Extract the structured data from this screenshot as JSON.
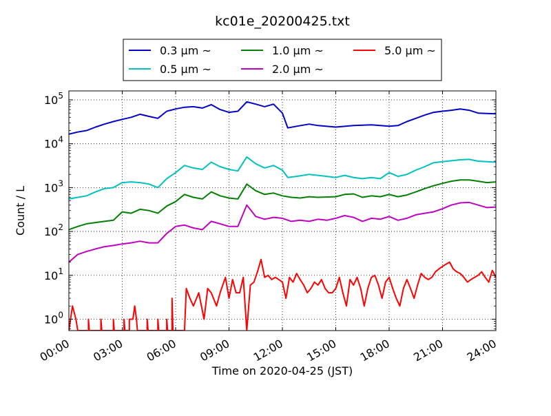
{
  "chart_data": {
    "type": "line",
    "title": "kc01e_20200425.txt",
    "xlabel": "Time on 2020-04-25 (JST)",
    "ylabel": "Count / L",
    "x_unit": "hours",
    "xlim": [
      0,
      24
    ],
    "ylim": [
      0.55,
      160000
    ],
    "yscale": "log",
    "grid": true,
    "legend_placement": "top-center",
    "x_ticks": [
      {
        "value": 0,
        "label": "00:00"
      },
      {
        "value": 3,
        "label": "03:00"
      },
      {
        "value": 6,
        "label": "06:00"
      },
      {
        "value": 9,
        "label": "09:00"
      },
      {
        "value": 12,
        "label": "12:00"
      },
      {
        "value": 15,
        "label": "15:00"
      },
      {
        "value": 18,
        "label": "18:00"
      },
      {
        "value": 21,
        "label": "21:00"
      },
      {
        "value": 24,
        "label": "24:00"
      }
    ],
    "y_ticks": [
      {
        "value": 1,
        "base": "10",
        "exp": "0"
      },
      {
        "value": 10,
        "base": "10",
        "exp": "1"
      },
      {
        "value": 100,
        "base": "10",
        "exp": "2"
      },
      {
        "value": 1000,
        "base": "10",
        "exp": "3"
      },
      {
        "value": 10000,
        "base": "10",
        "exp": "4"
      },
      {
        "value": 100000,
        "base": "10",
        "exp": "5"
      }
    ],
    "series": [
      {
        "name": "0.3 μm  ~",
        "color": "#0000cc",
        "points": [
          [
            0,
            16500
          ],
          [
            0.5,
            18500
          ],
          [
            1,
            20000
          ],
          [
            1.5,
            24000
          ],
          [
            2,
            28000
          ],
          [
            2.5,
            32000
          ],
          [
            3,
            36000
          ],
          [
            3.5,
            40000
          ],
          [
            4,
            47000
          ],
          [
            4.5,
            42000
          ],
          [
            5,
            38000
          ],
          [
            5.5,
            55000
          ],
          [
            6,
            62000
          ],
          [
            6.5,
            68000
          ],
          [
            7,
            70000
          ],
          [
            7.5,
            65000
          ],
          [
            8,
            78000
          ],
          [
            8.5,
            60000
          ],
          [
            9,
            52000
          ],
          [
            9.5,
            55000
          ],
          [
            10,
            90000
          ],
          [
            10.5,
            80000
          ],
          [
            11,
            70000
          ],
          [
            11.5,
            80000
          ],
          [
            12,
            50000
          ],
          [
            12.3,
            23000
          ],
          [
            12.8,
            25000
          ],
          [
            13.5,
            28000
          ],
          [
            14,
            26000
          ],
          [
            15,
            24000
          ],
          [
            16,
            26000
          ],
          [
            17,
            27000
          ],
          [
            18,
            25000
          ],
          [
            18.5,
            26000
          ],
          [
            19,
            32000
          ],
          [
            19.5,
            38000
          ],
          [
            20,
            45000
          ],
          [
            20.5,
            52000
          ],
          [
            21,
            55000
          ],
          [
            21.5,
            58000
          ],
          [
            22,
            62000
          ],
          [
            22.5,
            58000
          ],
          [
            23,
            50000
          ],
          [
            24,
            48000
          ]
        ]
      },
      {
        "name": "0.5 μm  ~",
        "color": "#00bfbf",
        "points": [
          [
            0,
            550
          ],
          [
            0.5,
            600
          ],
          [
            1,
            650
          ],
          [
            1.5,
            800
          ],
          [
            2,
            950
          ],
          [
            2.5,
            1000
          ],
          [
            3,
            1300
          ],
          [
            3.5,
            1350
          ],
          [
            4,
            1300
          ],
          [
            4.5,
            1200
          ],
          [
            5,
            1000
          ],
          [
            5.5,
            1600
          ],
          [
            6,
            2200
          ],
          [
            6.5,
            3200
          ],
          [
            7,
            2800
          ],
          [
            7.5,
            2600
          ],
          [
            8,
            3800
          ],
          [
            8.5,
            3000
          ],
          [
            9,
            2600
          ],
          [
            9.5,
            2400
          ],
          [
            10,
            5000
          ],
          [
            10.5,
            3500
          ],
          [
            11,
            2800
          ],
          [
            11.5,
            3200
          ],
          [
            12,
            2500
          ],
          [
            12.3,
            1700
          ],
          [
            12.8,
            1800
          ],
          [
            13.5,
            2000
          ],
          [
            14,
            1900
          ],
          [
            14.5,
            1800
          ],
          [
            15,
            1700
          ],
          [
            15.5,
            1900
          ],
          [
            16,
            1700
          ],
          [
            16.5,
            1600
          ],
          [
            17,
            1700
          ],
          [
            17.5,
            1600
          ],
          [
            18,
            2200
          ],
          [
            18.5,
            1800
          ],
          [
            19,
            2000
          ],
          [
            19.5,
            2500
          ],
          [
            20,
            3000
          ],
          [
            20.5,
            3700
          ],
          [
            21,
            3900
          ],
          [
            21.5,
            4100
          ],
          [
            22,
            4300
          ],
          [
            22.5,
            4400
          ],
          [
            23,
            4000
          ],
          [
            24,
            3800
          ]
        ]
      },
      {
        "name": "1.0 μm  ~",
        "color": "#007f00",
        "points": [
          [
            0,
            110
          ],
          [
            0.5,
            130
          ],
          [
            1,
            150
          ],
          [
            1.5,
            160
          ],
          [
            2,
            170
          ],
          [
            2.5,
            180
          ],
          [
            3,
            280
          ],
          [
            3.5,
            260
          ],
          [
            4,
            320
          ],
          [
            4.5,
            300
          ],
          [
            5,
            260
          ],
          [
            5.5,
            380
          ],
          [
            6,
            480
          ],
          [
            6.5,
            700
          ],
          [
            7,
            600
          ],
          [
            7.5,
            550
          ],
          [
            8,
            800
          ],
          [
            8.5,
            650
          ],
          [
            9,
            580
          ],
          [
            9.5,
            550
          ],
          [
            10,
            1200
          ],
          [
            10.5,
            850
          ],
          [
            11,
            700
          ],
          [
            11.5,
            750
          ],
          [
            12,
            650
          ],
          [
            12.5,
            600
          ],
          [
            13,
            580
          ],
          [
            13.5,
            620
          ],
          [
            14,
            600
          ],
          [
            15,
            620
          ],
          [
            15.5,
            700
          ],
          [
            16,
            720
          ],
          [
            16.5,
            600
          ],
          [
            17,
            650
          ],
          [
            17.5,
            620
          ],
          [
            18,
            700
          ],
          [
            18.5,
            620
          ],
          [
            19,
            680
          ],
          [
            19.5,
            800
          ],
          [
            20,
            950
          ],
          [
            20.5,
            1100
          ],
          [
            21,
            1250
          ],
          [
            21.5,
            1400
          ],
          [
            22,
            1500
          ],
          [
            22.5,
            1500
          ],
          [
            23,
            1400
          ],
          [
            23.5,
            1300
          ],
          [
            24,
            1350
          ]
        ]
      },
      {
        "name": "2.0 μm  ~",
        "color": "#bf00bf",
        "points": [
          [
            0,
            20
          ],
          [
            0.5,
            30
          ],
          [
            1,
            35
          ],
          [
            1.5,
            40
          ],
          [
            2,
            45
          ],
          [
            2.5,
            48
          ],
          [
            3,
            52
          ],
          [
            3.5,
            55
          ],
          [
            4,
            60
          ],
          [
            4.5,
            55
          ],
          [
            5,
            55
          ],
          [
            5.5,
            90
          ],
          [
            6,
            130
          ],
          [
            6.5,
            140
          ],
          [
            7,
            120
          ],
          [
            7.5,
            110
          ],
          [
            8,
            170
          ],
          [
            8.5,
            150
          ],
          [
            9,
            130
          ],
          [
            9.5,
            130
          ],
          [
            10,
            400
          ],
          [
            10.5,
            220
          ],
          [
            11,
            190
          ],
          [
            11.5,
            210
          ],
          [
            12,
            200
          ],
          [
            12.5,
            170
          ],
          [
            13,
            180
          ],
          [
            13.5,
            170
          ],
          [
            14,
            190
          ],
          [
            14.5,
            180
          ],
          [
            15,
            200
          ],
          [
            15.5,
            230
          ],
          [
            16,
            210
          ],
          [
            16.5,
            170
          ],
          [
            17,
            200
          ],
          [
            17.5,
            190
          ],
          [
            18,
            220
          ],
          [
            18.5,
            180
          ],
          [
            19,
            200
          ],
          [
            19.5,
            240
          ],
          [
            20,
            260
          ],
          [
            20.5,
            280
          ],
          [
            21,
            330
          ],
          [
            21.5,
            400
          ],
          [
            22,
            450
          ],
          [
            22.5,
            460
          ],
          [
            23,
            400
          ],
          [
            23.5,
            350
          ],
          [
            24,
            360
          ]
        ]
      },
      {
        "name": "5.0 μm  ~",
        "color": "#ff0000",
        "points": [
          [
            0,
            0.55
          ],
          [
            0.2,
            2
          ],
          [
            0.4,
            1
          ],
          [
            0.5,
            0.55
          ],
          [
            1.1,
            0.55
          ],
          [
            1.1,
            1
          ],
          [
            1.15,
            0.55
          ],
          [
            1.8,
            0.55
          ],
          [
            1.8,
            1
          ],
          [
            1.85,
            0.55
          ],
          [
            2.5,
            0.55
          ],
          [
            2.5,
            1
          ],
          [
            2.55,
            0.55
          ],
          [
            3.1,
            0.55
          ],
          [
            3.1,
            1
          ],
          [
            3.15,
            0.55
          ],
          [
            3.4,
            0.55
          ],
          [
            3.4,
            1
          ],
          [
            3.6,
            1
          ],
          [
            3.7,
            2
          ],
          [
            3.8,
            1
          ],
          [
            3.85,
            0.55
          ],
          [
            4.4,
            0.55
          ],
          [
            4.4,
            1
          ],
          [
            4.45,
            0.55
          ],
          [
            5.0,
            0.55
          ],
          [
            5.0,
            1
          ],
          [
            5.05,
            0.55
          ],
          [
            5.5,
            0.55
          ],
          [
            5.5,
            1
          ],
          [
            5.55,
            0.55
          ],
          [
            5.8,
            0.55
          ],
          [
            5.8,
            3
          ],
          [
            5.85,
            0.55
          ],
          [
            6.5,
            0.55
          ],
          [
            6.6,
            5
          ],
          [
            6.8,
            3
          ],
          [
            7,
            2
          ],
          [
            7.3,
            4
          ],
          [
            7.6,
            1
          ],
          [
            7.8,
            5
          ],
          [
            8,
            4
          ],
          [
            8.3,
            2
          ],
          [
            8.5,
            4
          ],
          [
            8.8,
            9
          ],
          [
            9,
            3
          ],
          [
            9.2,
            8
          ],
          [
            9.4,
            4
          ],
          [
            9.6,
            4
          ],
          [
            9.8,
            9
          ],
          [
            10,
            0.55
          ],
          [
            10.2,
            6
          ],
          [
            10.4,
            7
          ],
          [
            10.6,
            12
          ],
          [
            10.8,
            23
          ],
          [
            11,
            9
          ],
          [
            11.2,
            10
          ],
          [
            11.4,
            8
          ],
          [
            11.6,
            9
          ],
          [
            11.8,
            8
          ],
          [
            12,
            7
          ],
          [
            12.2,
            3
          ],
          [
            12.4,
            9
          ],
          [
            12.6,
            7
          ],
          [
            12.8,
            11
          ],
          [
            13,
            8
          ],
          [
            13.2,
            6
          ],
          [
            13.4,
            4
          ],
          [
            13.6,
            5
          ],
          [
            13.8,
            7
          ],
          [
            14,
            6
          ],
          [
            14.2,
            8
          ],
          [
            14.4,
            5
          ],
          [
            14.6,
            4
          ],
          [
            14.8,
            4
          ],
          [
            15,
            5
          ],
          [
            15.2,
            9
          ],
          [
            15.4,
            4
          ],
          [
            15.6,
            2
          ],
          [
            15.8,
            8
          ],
          [
            16,
            6
          ],
          [
            16.2,
            9
          ],
          [
            16.4,
            5
          ],
          [
            16.6,
            2
          ],
          [
            16.8,
            5
          ],
          [
            17,
            9
          ],
          [
            17.2,
            10
          ],
          [
            17.4,
            6
          ],
          [
            17.6,
            3
          ],
          [
            17.8,
            7
          ],
          [
            18,
            9
          ],
          [
            18.2,
            5
          ],
          [
            18.4,
            3
          ],
          [
            18.6,
            2
          ],
          [
            18.8,
            5
          ],
          [
            19,
            8
          ],
          [
            19.2,
            5
          ],
          [
            19.4,
            3
          ],
          [
            19.6,
            6
          ],
          [
            19.8,
            11
          ],
          [
            20,
            9
          ],
          [
            20.2,
            8
          ],
          [
            20.4,
            9
          ],
          [
            20.6,
            12
          ],
          [
            20.8,
            14
          ],
          [
            21,
            16
          ],
          [
            21.2,
            18
          ],
          [
            21.4,
            20
          ],
          [
            21.6,
            14
          ],
          [
            21.8,
            12
          ],
          [
            22,
            11
          ],
          [
            22.2,
            9
          ],
          [
            22.4,
            7
          ],
          [
            22.6,
            8
          ],
          [
            22.8,
            9
          ],
          [
            23,
            10
          ],
          [
            23.2,
            12
          ],
          [
            23.4,
            9
          ],
          [
            23.6,
            7
          ],
          [
            23.8,
            13
          ],
          [
            24,
            9
          ]
        ]
      }
    ]
  }
}
